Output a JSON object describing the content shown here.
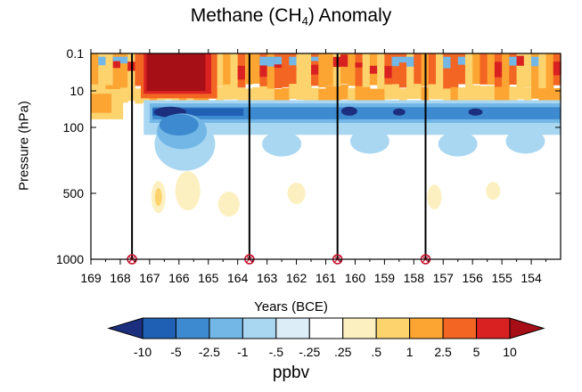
{
  "chart_data": {
    "type": "heatmap",
    "title": "Methane (CH",
    "title_subscript": "4",
    "title_suffix": ") Anomaly",
    "xlabel": "Years (BCE)",
    "ylabel": "Pressure (hPa)",
    "x_ticks": [
      "169",
      "168",
      "167",
      "166",
      "165",
      "164",
      "163",
      "162",
      "161",
      "160",
      "159",
      "158",
      "157",
      "156",
      "155",
      "154"
    ],
    "x_range": [
      169,
      153
    ],
    "x_reversed": true,
    "y_ticks": [
      "0.1",
      "10",
      "100",
      "500",
      "1000"
    ],
    "y_range": [
      0.1,
      1000
    ],
    "y_scale": "pressure (log, inverted)",
    "eruption_years": [
      167.6,
      163.6,
      160.6,
      157.6
    ],
    "colorbar": {
      "label": "ppbv",
      "levels": [
        "-10",
        "-5",
        "-2.5",
        "-1",
        "-.5",
        "-.25",
        ".25",
        ".5",
        "1",
        "2.5",
        "5",
        "10"
      ],
      "colors": [
        "#1c2f7f",
        "#1f5fb4",
        "#3d8ad0",
        "#72b7e6",
        "#a9d7f2",
        "#dcedf8",
        "#ffffff",
        "#fdf0c0",
        "#fdd36e",
        "#fca532",
        "#f26522",
        "#d92121",
        "#a50f15"
      ]
    }
  }
}
